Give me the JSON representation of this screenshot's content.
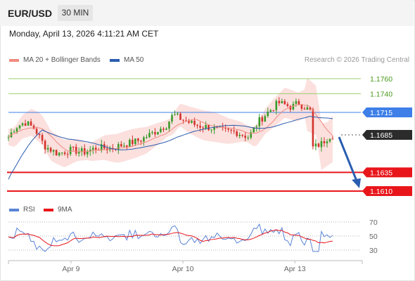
{
  "header": {
    "symbol": "EUR/USD",
    "timeframe": "30 MIN",
    "datetime": "Monday, April 13, 2026 4:11:21 AM CET"
  },
  "legend": {
    "ma20_label": "MA 20 + Bollinger Bands",
    "ma50_label": "MA 50",
    "credit": "Research © 2026 Trading Central",
    "rsi_label": "RSI",
    "ma9_label": "9MA"
  },
  "colors": {
    "ma20": "#f08a80",
    "ma50": "#2a5db0",
    "bollinger_fill": "#fbe0de",
    "green_level": "#9bcf6e",
    "blue_level": "#3e7fe8",
    "red_level": "#e8161b",
    "current_price_tag": "#2b2b2b",
    "arrow": "#2a5db0",
    "rsi": "#5a84d6",
    "rsi_ma": "#e8161b"
  },
  "chart_data": [
    {
      "type": "candlestick",
      "ylim": [
        1.1595,
        1.1775
      ],
      "levels": [
        {
          "label": "1.1760",
          "value": 1.176,
          "role": "resistance"
        },
        {
          "label": "1.1740",
          "value": 1.174,
          "role": "resistance"
        },
        {
          "label": "1.1715",
          "value": 1.1715,
          "role": "pivot"
        },
        {
          "label": "1.1685",
          "value": 1.1685,
          "role": "current"
        },
        {
          "label": "1.1635",
          "value": 1.1635,
          "role": "target"
        },
        {
          "label": "1.1610",
          "value": 1.161,
          "role": "target"
        }
      ],
      "x_ticks": [
        {
          "label": "Apr 9",
          "x": 0.19
        },
        {
          "label": "Apr 10",
          "x": 0.53
        },
        {
          "label": "Apr 13",
          "x": 0.87
        }
      ],
      "series": [
        {
          "name": "MA 20 + Bollinger Bands"
        },
        {
          "name": "MA 50"
        }
      ],
      "forecast_arrow": {
        "from": 1.1684,
        "to": 1.1612
      }
    },
    {
      "type": "line",
      "ylim": [
        20,
        80
      ],
      "y_ticks": [
        {
          "label": "70",
          "value": 70
        },
        {
          "label": "50",
          "value": 50
        },
        {
          "label": "30",
          "value": 30
        }
      ],
      "series": [
        {
          "name": "RSI"
        },
        {
          "name": "9MA"
        }
      ]
    }
  ]
}
